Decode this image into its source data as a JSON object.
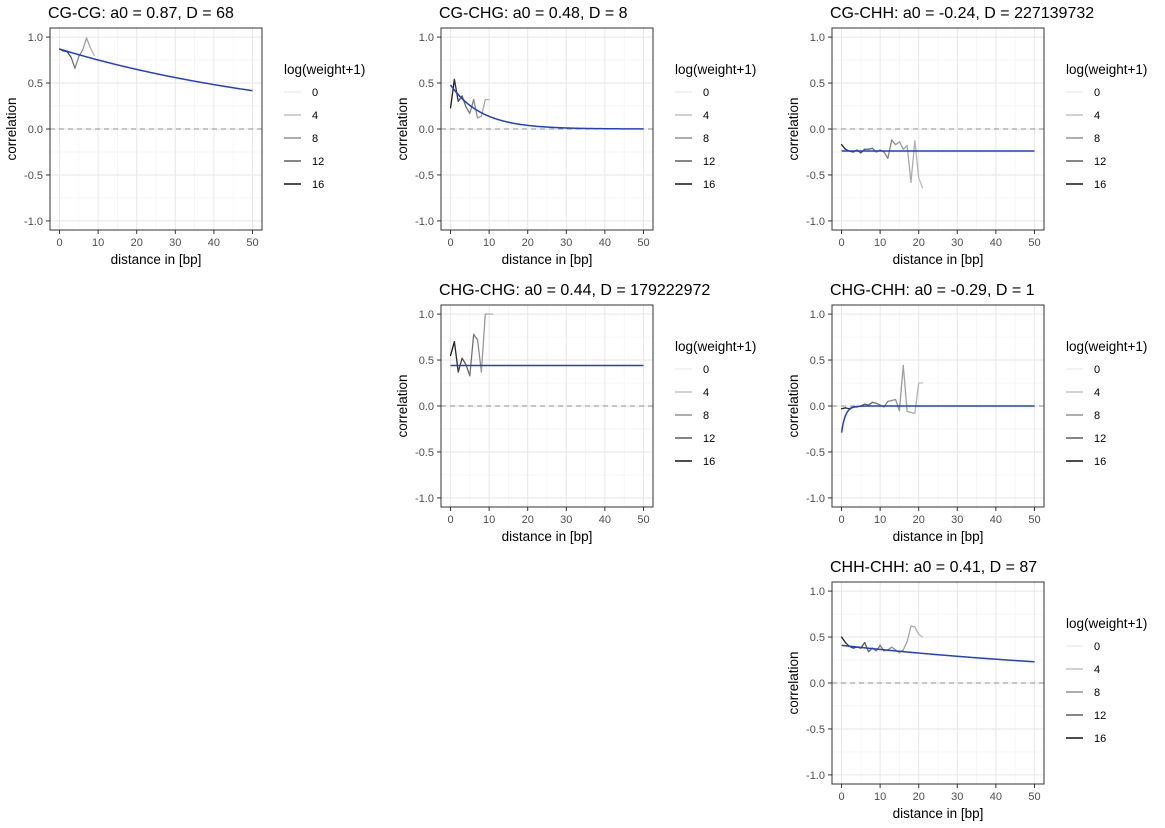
{
  "colors": {
    "panel_border": "#333333",
    "grid_major": "#e6e6e6",
    "grid_minor": "#f3f3f3",
    "fit_line": "#1f3fd1",
    "ref_line": "#8c8c8c",
    "tick_text": "#4d4d4d",
    "text": "#000000",
    "weight_scale": [
      "#eeeeee",
      "#c4c4c4",
      "#949494",
      "#5e5e5e",
      "#141414"
    ]
  },
  "legend": {
    "title": "log(weight+1)",
    "entries": [
      "0",
      "4",
      "8",
      "12",
      "16"
    ]
  },
  "chart_data": [
    {
      "type": "line",
      "title": "CG-CG: a0 = 0.87, D = 68",
      "xlabel": "distance in [bp]",
      "ylabel": "correlation",
      "xlim": [
        0,
        50
      ],
      "ylim": [
        -1.0,
        1.0
      ],
      "xticks": [
        "0",
        "10",
        "20",
        "30",
        "40",
        "50"
      ],
      "yticks": [
        "-1.0",
        "-0.5",
        "0.0",
        "0.5",
        "1.0"
      ],
      "grid": true,
      "legend_position": "right",
      "reference_line": 0,
      "fit": {
        "a0": 0.87,
        "D": 68,
        "model": "a0*exp(-x/D)",
        "x_range": [
          0,
          50
        ]
      },
      "observed": {
        "x": [
          0,
          1,
          2,
          3,
          4,
          5,
          6,
          7,
          8,
          9
        ],
        "y": [
          0.87,
          0.85,
          0.84,
          0.78,
          0.66,
          0.79,
          0.86,
          0.99,
          0.88,
          0.8
        ],
        "weight": [
          16,
          15,
          14,
          13,
          9,
          9,
          8,
          7,
          6,
          5
        ]
      }
    },
    {
      "type": "line",
      "title": "CG-CHG: a0 = 0.48, D = 8",
      "xlabel": "distance in [bp]",
      "ylabel": "correlation",
      "xlim": [
        0,
        50
      ],
      "ylim": [
        -1.0,
        1.0
      ],
      "xticks": [
        "0",
        "10",
        "20",
        "30",
        "40",
        "50"
      ],
      "yticks": [
        "-1.0",
        "-0.5",
        "0.0",
        "0.5",
        "1.0"
      ],
      "grid": true,
      "legend_position": "right",
      "reference_line": 0,
      "fit": {
        "a0": 0.48,
        "D": 8,
        "model": "a0*exp(-x/D)",
        "x_range": [
          0,
          50
        ]
      },
      "observed": {
        "x": [
          0,
          1,
          2,
          3,
          4,
          5,
          6,
          7,
          8,
          9,
          10
        ],
        "y": [
          0.23,
          0.54,
          0.3,
          0.36,
          0.24,
          0.17,
          0.32,
          0.12,
          0.14,
          0.32,
          0.32
        ],
        "weight": [
          16,
          15,
          14,
          12,
          11,
          10,
          9,
          8,
          7,
          6,
          5
        ]
      }
    },
    {
      "type": "line",
      "title": "CG-CHH: a0 = -0.24, D = 227139732",
      "xlabel": "distance in [bp]",
      "ylabel": "correlation",
      "xlim": [
        0,
        50
      ],
      "ylim": [
        -1.0,
        1.0
      ],
      "xticks": [
        "0",
        "10",
        "20",
        "30",
        "40",
        "50"
      ],
      "yticks": [
        "-1.0",
        "-0.5",
        "0.0",
        "0.5",
        "1.0"
      ],
      "grid": true,
      "legend_position": "right",
      "reference_line": 0,
      "fit": {
        "a0": -0.24,
        "D": 227139732,
        "model": "a0*exp(-x/D)",
        "x_range": [
          0,
          50
        ]
      },
      "observed": {
        "x": [
          0,
          1,
          2,
          3,
          4,
          5,
          6,
          7,
          8,
          9,
          10,
          11,
          12,
          13,
          14,
          15,
          16,
          17,
          18,
          19,
          20,
          21
        ],
        "y": [
          -0.17,
          -0.22,
          -0.24,
          -0.25,
          -0.23,
          -0.26,
          -0.22,
          -0.22,
          -0.21,
          -0.25,
          -0.23,
          -0.25,
          -0.32,
          -0.12,
          -0.17,
          -0.14,
          -0.22,
          -0.18,
          -0.58,
          -0.13,
          -0.53,
          -0.64
        ],
        "weight": [
          16,
          15,
          14,
          14,
          13,
          13,
          12,
          12,
          11,
          11,
          10,
          10,
          9,
          9,
          8,
          8,
          7,
          7,
          6,
          6,
          5,
          4
        ]
      }
    },
    {
      "type": "line",
      "title": "CHG-CHG: a0 = 0.44, D = 179222972",
      "xlabel": "distance in [bp]",
      "ylabel": "correlation",
      "xlim": [
        0,
        50
      ],
      "ylim": [
        -1.0,
        1.0
      ],
      "xticks": [
        "0",
        "10",
        "20",
        "30",
        "40",
        "50"
      ],
      "yticks": [
        "-1.0",
        "-0.5",
        "0.0",
        "0.5",
        "1.0"
      ],
      "grid": true,
      "legend_position": "right",
      "reference_line": 0,
      "fit": {
        "a0": 0.44,
        "D": 179222972,
        "model": "a0*exp(-x/D)",
        "x_range": [
          0,
          50
        ]
      },
      "observed": {
        "x": [
          0,
          1,
          2,
          3,
          4,
          5,
          6,
          7,
          8,
          9,
          10,
          11
        ],
        "y": [
          0.55,
          0.7,
          0.37,
          0.52,
          0.45,
          0.33,
          0.78,
          0.72,
          0.37,
          1.0,
          1.0,
          1.0
        ],
        "weight": [
          16,
          16,
          14,
          13,
          12,
          11,
          10,
          9,
          8,
          7,
          6,
          5
        ]
      }
    },
    {
      "type": "line",
      "title": "CHG-CHH: a0 = -0.29, D = 1",
      "xlabel": "distance in [bp]",
      "ylabel": "correlation",
      "xlim": [
        0,
        50
      ],
      "ylim": [
        -1.0,
        1.0
      ],
      "xticks": [
        "0",
        "10",
        "20",
        "30",
        "40",
        "50"
      ],
      "yticks": [
        "-1.0",
        "-0.5",
        "0.0",
        "0.5",
        "1.0"
      ],
      "grid": true,
      "legend_position": "right",
      "reference_line": 0,
      "fit": {
        "a0": -0.29,
        "D": 1,
        "model": "a0*exp(-x/D)",
        "x_range": [
          0,
          50
        ]
      },
      "observed": {
        "x": [
          0,
          1,
          2,
          3,
          4,
          5,
          6,
          7,
          8,
          9,
          10,
          11,
          12,
          13,
          14,
          15,
          16,
          17,
          18,
          19,
          20,
          21
        ],
        "y": [
          -0.03,
          -0.02,
          -0.03,
          -0.01,
          -0.01,
          0.0,
          0.02,
          0.01,
          0.04,
          0.03,
          0.01,
          -0.01,
          0.05,
          0.06,
          0.07,
          -0.05,
          0.44,
          -0.06,
          -0.07,
          -0.08,
          0.25,
          0.25
        ],
        "weight": [
          16,
          15,
          14,
          14,
          13,
          13,
          12,
          12,
          11,
          11,
          10,
          10,
          9,
          9,
          8,
          8,
          7,
          7,
          6,
          6,
          5,
          4
        ]
      }
    },
    {
      "type": "line",
      "title": "CHH-CHH: a0 = 0.41, D = 87",
      "xlabel": "distance in [bp]",
      "ylabel": "correlation",
      "xlim": [
        0,
        50
      ],
      "ylim": [
        -1.0,
        1.0
      ],
      "xticks": [
        "0",
        "10",
        "20",
        "30",
        "40",
        "50"
      ],
      "yticks": [
        "-1.0",
        "-0.5",
        "0.0",
        "0.5",
        "1.0"
      ],
      "grid": true,
      "legend_position": "right",
      "reference_line": 0,
      "fit": {
        "a0": 0.41,
        "D": 87,
        "model": "a0*exp(-x/D)",
        "x_range": [
          0,
          50
        ]
      },
      "observed": {
        "x": [
          0,
          1,
          2,
          3,
          4,
          5,
          6,
          7,
          8,
          9,
          10,
          11,
          12,
          13,
          14,
          15,
          16,
          17,
          18,
          19,
          20,
          21
        ],
        "y": [
          0.5,
          0.44,
          0.4,
          0.38,
          0.39,
          0.38,
          0.44,
          0.34,
          0.38,
          0.35,
          0.41,
          0.35,
          0.36,
          0.39,
          0.36,
          0.33,
          0.36,
          0.45,
          0.62,
          0.61,
          0.53,
          0.5
        ],
        "weight": [
          16,
          15,
          14,
          14,
          13,
          13,
          12,
          12,
          11,
          11,
          10,
          10,
          9,
          9,
          8,
          8,
          7,
          7,
          6,
          6,
          5,
          4
        ]
      }
    }
  ]
}
